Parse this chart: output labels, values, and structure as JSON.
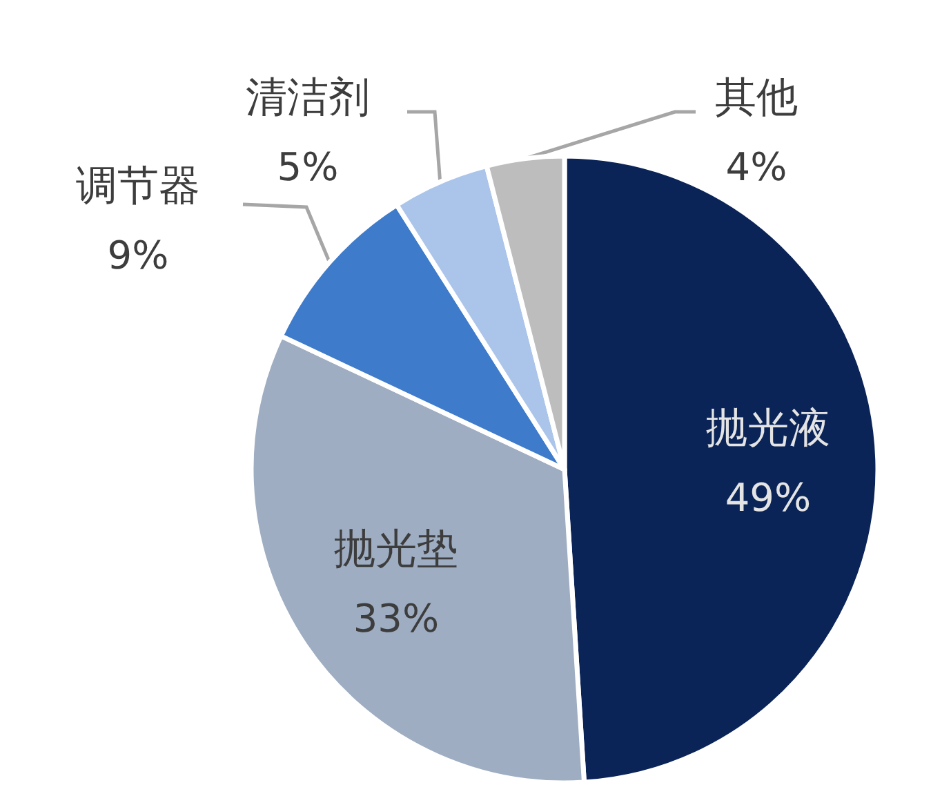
{
  "chart_data": {
    "type": "pie",
    "categories": [
      "抛光液",
      "抛光垫",
      "调节器",
      "清洁剂",
      "其他"
    ],
    "values": [
      49,
      33,
      9,
      5,
      4
    ],
    "colors": [
      "#0b2457",
      "#9eadc2",
      "#3e7bcb",
      "#abc5ea",
      "#bdbdbd"
    ],
    "value_labels": [
      "49%",
      "33%",
      "9%",
      "5%",
      "4%"
    ]
  }
}
